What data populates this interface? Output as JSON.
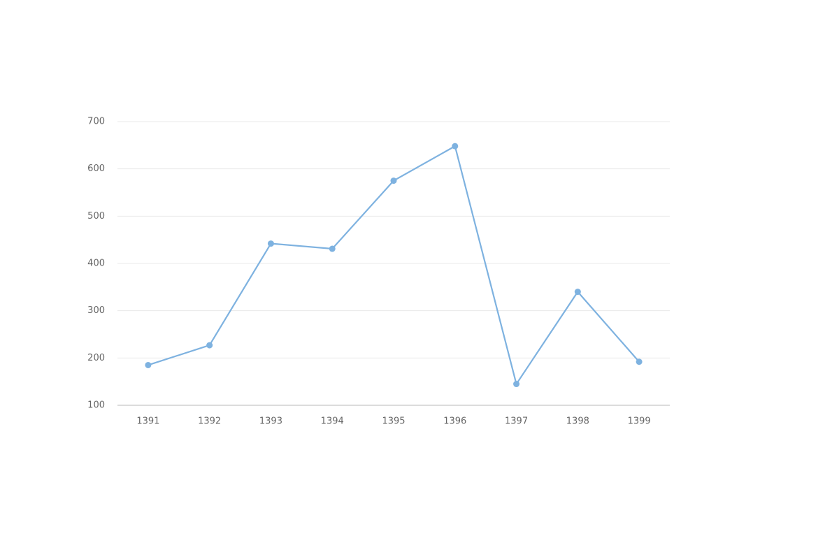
{
  "chart_data": {
    "type": "line",
    "categories": [
      "1391",
      "1392",
      "1393",
      "1394",
      "1395",
      "1396",
      "1397",
      "1398",
      "1399"
    ],
    "values": [
      185,
      227,
      442,
      431,
      575,
      648,
      145,
      340,
      192
    ],
    "color": "#7eb2e0",
    "ylim": [
      100,
      700
    ],
    "yticks": [
      100,
      200,
      300,
      400,
      500,
      600,
      700
    ],
    "grid": true
  }
}
